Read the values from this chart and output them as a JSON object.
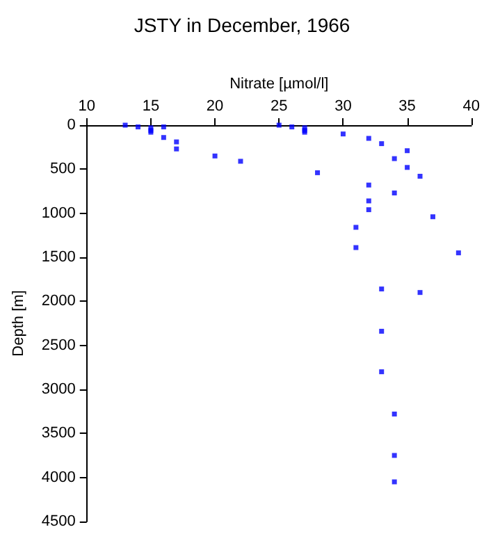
{
  "chart_data": {
    "type": "scatter",
    "title": "JSTY in December, 1966",
    "xlabel": "Nitrate [µmol/l]",
    "ylabel": "Depth [m]",
    "series": [
      {
        "color": "#0000ff",
        "x": [
          13,
          14,
          15,
          15,
          15,
          16,
          16,
          17,
          17,
          20,
          22,
          25,
          26,
          27,
          27,
          27,
          28,
          30,
          32,
          33,
          34,
          35,
          35,
          36,
          32,
          34,
          32,
          32,
          37,
          31,
          31,
          39,
          33,
          36,
          33,
          33,
          34,
          34,
          34
        ],
        "values": [
          0,
          20,
          30,
          60,
          80,
          20,
          140,
          190,
          270,
          350,
          410,
          0,
          20,
          30,
          60,
          80,
          540,
          100,
          150,
          210,
          380,
          290,
          480,
          580,
          680,
          770,
          860,
          960,
          1040,
          1160,
          1390,
          1450,
          1860,
          1900,
          2340,
          2800,
          3280,
          3750,
          4050
        ]
      }
    ],
    "xlim": [
      10,
      40
    ],
    "xticks": [
      10,
      15,
      20,
      25,
      30,
      35,
      40
    ],
    "ylim": [
      4500,
      0
    ],
    "yticks": [
      0,
      500,
      1000,
      1500,
      2000,
      2500,
      3000,
      3500,
      4000,
      4500
    ],
    "grid": false,
    "marker": "square"
  }
}
